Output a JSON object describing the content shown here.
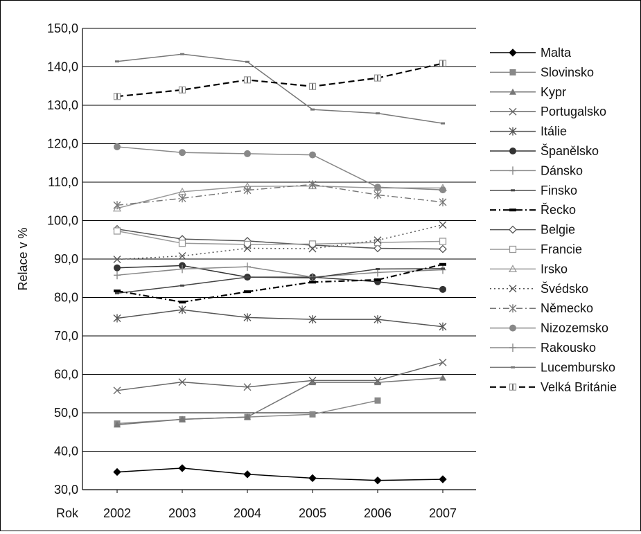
{
  "chart_data": {
    "type": "line",
    "title": "",
    "xlabel": "Rok",
    "ylabel": "Relace v %",
    "ylim": [
      30,
      150
    ],
    "y_tick_labels": [
      "30,0",
      "40,0",
      "50,0",
      "60,0",
      "70,0",
      "80,0",
      "90,0",
      "100,0",
      "110,0",
      "120,0",
      "130,0",
      "140,0",
      "150,0"
    ],
    "categories": [
      "2002",
      "2003",
      "2004",
      "2005",
      "2006",
      "2007"
    ],
    "grid": "horizontal",
    "legend_placement": "right",
    "series": [
      {
        "name": "Malta",
        "color": "#000000",
        "dash": "solid",
        "marker": "diamond-filled",
        "values": [
          34.6,
          35.6,
          34.0,
          33.0,
          32.4,
          32.7
        ]
      },
      {
        "name": "Slovinsko",
        "color": "#888888",
        "dash": "solid",
        "marker": "square-filled",
        "values": [
          47.2,
          48.3,
          48.9,
          49.6,
          53.2,
          null
        ]
      },
      {
        "name": "Kypr",
        "color": "#777777",
        "dash": "solid",
        "marker": "triangle-filled",
        "values": [
          46.9,
          48.3,
          48.9,
          57.9,
          57.9,
          59.1
        ]
      },
      {
        "name": "Portugalsko",
        "color": "#666666",
        "dash": "solid",
        "marker": "x",
        "values": [
          55.8,
          58.0,
          56.7,
          58.4,
          58.4,
          63.1
        ]
      },
      {
        "name": "Itálie",
        "color": "#555555",
        "dash": "solid",
        "marker": "asterisk",
        "values": [
          74.6,
          76.8,
          74.8,
          74.3,
          74.3,
          72.4
        ]
      },
      {
        "name": "Španělsko",
        "color": "#333333",
        "dash": "solid",
        "marker": "circle-filled",
        "values": [
          87.7,
          88.3,
          85.3,
          85.3,
          84.1,
          82.1
        ]
      },
      {
        "name": "Dánsko",
        "color": "#888888",
        "dash": "solid",
        "marker": "plus",
        "values": [
          85.8,
          87.4,
          88.0,
          85.3,
          86.5,
          87.2
        ]
      },
      {
        "name": "Finsko",
        "color": "#444444",
        "dash": "solid",
        "marker": "dash",
        "values": [
          81.1,
          83.1,
          85.3,
          85.1,
          87.4,
          87.5
        ]
      },
      {
        "name": "Řecko",
        "color": "#000000",
        "dash": "dashdot",
        "marker": "dash-thick",
        "values": [
          81.7,
          78.8,
          81.5,
          84.0,
          84.6,
          88.6
        ]
      },
      {
        "name": "Belgie",
        "color": "#555555",
        "dash": "solid",
        "marker": "diamond-open",
        "values": [
          97.8,
          95.2,
          94.7,
          93.6,
          92.8,
          92.6
        ]
      },
      {
        "name": "Francie",
        "color": "#999999",
        "dash": "solid",
        "marker": "square-open",
        "values": [
          97.3,
          94.1,
          93.8,
          93.9,
          94.3,
          94.6
        ]
      },
      {
        "name": "Irsko",
        "color": "#999999",
        "dash": "solid",
        "marker": "triangle-open",
        "values": [
          103.2,
          107.5,
          108.9,
          109.0,
          108.5,
          108.5
        ]
      },
      {
        "name": "Švédsko",
        "color": "#555555",
        "dash": "dotted",
        "marker": "x",
        "values": [
          89.9,
          90.8,
          92.8,
          92.7,
          94.9,
          98.9
        ]
      },
      {
        "name": "Německo",
        "color": "#777777",
        "dash": "dashdot",
        "marker": "asterisk",
        "values": [
          104.0,
          105.8,
          107.9,
          109.4,
          106.7,
          104.8
        ]
      },
      {
        "name": "Nizozemsko",
        "color": "#888888",
        "dash": "solid",
        "marker": "circle-filled",
        "values": [
          119.2,
          117.7,
          117.4,
          117.1,
          108.7,
          108.0
        ]
      },
      {
        "name": "Rakousko",
        "color": "#888888",
        "dash": "solid",
        "marker": "plus",
        "values": [
          null,
          null,
          null,
          null,
          null,
          null
        ]
      },
      {
        "name": "Lucembursko",
        "color": "#777777",
        "dash": "solid",
        "marker": "dash",
        "values": [
          141.4,
          143.3,
          141.3,
          128.9,
          127.9,
          125.3
        ]
      },
      {
        "name": "Velká Británie",
        "color": "#000000",
        "dash": "dashed",
        "marker": "bar-square",
        "values": [
          132.3,
          134.0,
          136.6,
          134.9,
          137.1,
          140.9
        ]
      }
    ]
  }
}
